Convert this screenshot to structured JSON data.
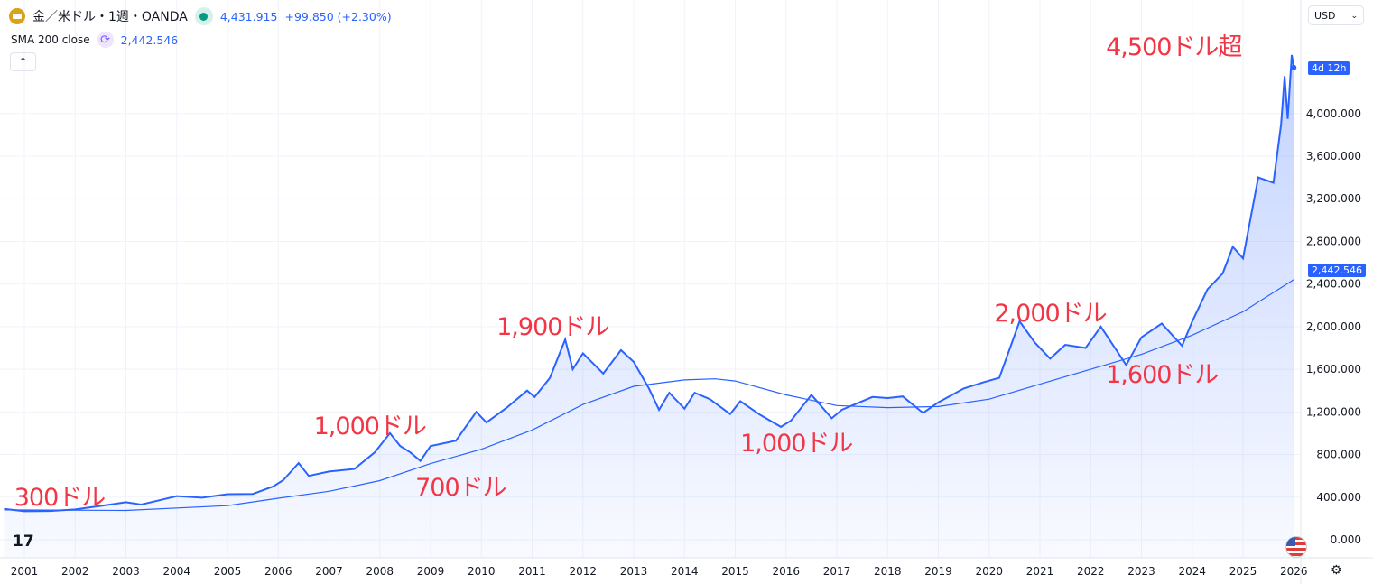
{
  "header": {
    "symbol": "金／米ドル・1週・OANDA",
    "price": "4,431.915",
    "change": "+99.850 (+2.30%)",
    "sma_label": "SMA 200 close",
    "sma_value": "2,442.546",
    "collapse": "^",
    "currency": "USD",
    "countdown": "4d 12h",
    "logo": "TV",
    "settings_icon": "gear-icon"
  },
  "annotations": [
    {
      "text": "300ドル",
      "t": 2000.8,
      "p": 330
    },
    {
      "text": "1,000ドル",
      "t": 2006.7,
      "p": 1000
    },
    {
      "text": "700ドル",
      "t": 2008.7,
      "p": 420
    },
    {
      "text": "1,900ドル",
      "t": 2010.3,
      "p": 1930
    },
    {
      "text": "1,000ドル",
      "t": 2015.1,
      "p": 840
    },
    {
      "text": "2,000ドル",
      "t": 2020.1,
      "p": 2060
    },
    {
      "text": "1,600ドル",
      "t": 2022.3,
      "p": 1480
    },
    {
      "text": "4,500ドル超",
      "t": 2022.3,
      "p": 4560
    }
  ],
  "colors": {
    "price": "#2962ff",
    "sma": "#2962ff",
    "annotation": "#f23645"
  },
  "chart_data": {
    "type": "area",
    "xlim": [
      2000.6,
      2026.05
    ],
    "ylim": [
      -100,
      4850
    ],
    "grid": true,
    "x_ticks": [
      "2001",
      "2002",
      "2003",
      "2004",
      "2005",
      "2006",
      "2007",
      "2008",
      "2009",
      "2010",
      "2011",
      "2012",
      "2013",
      "2014",
      "2015",
      "2016",
      "2017",
      "2018",
      "2019",
      "2020",
      "2021",
      "2022",
      "2023",
      "2024",
      "2025",
      "2026"
    ],
    "y_ticks": [
      0,
      400,
      800,
      1200,
      1600,
      2000,
      2400,
      2800,
      3200,
      3600,
      4000
    ],
    "y_tick_labels": [
      "0.000",
      "400.000",
      "800.000",
      "1,200.000",
      "1,600.000",
      "2,000.000",
      "2,400.000",
      "2,800.000",
      "3,200.000",
      "3,600.000",
      "4,000.000"
    ],
    "last_price": 4431.915,
    "sma_last": "2,442.546",
    "series": [
      {
        "name": "金／米ドル",
        "points": [
          [
            2000.6,
            290
          ],
          [
            2001,
            268
          ],
          [
            2001.5,
            270
          ],
          [
            2002,
            285
          ],
          [
            2002.5,
            318
          ],
          [
            2003,
            352
          ],
          [
            2003.3,
            330
          ],
          [
            2003.7,
            375
          ],
          [
            2004,
            410
          ],
          [
            2004.5,
            395
          ],
          [
            2005,
            428
          ],
          [
            2005.5,
            430
          ],
          [
            2005.9,
            500
          ],
          [
            2006.1,
            560
          ],
          [
            2006.4,
            720
          ],
          [
            2006.6,
            600
          ],
          [
            2007,
            640
          ],
          [
            2007.5,
            665
          ],
          [
            2007.9,
            820
          ],
          [
            2008.2,
            1000
          ],
          [
            2008.4,
            880
          ],
          [
            2008.6,
            820
          ],
          [
            2008.8,
            740
          ],
          [
            2009,
            880
          ],
          [
            2009.5,
            930
          ],
          [
            2009.9,
            1200
          ],
          [
            2010.1,
            1100
          ],
          [
            2010.5,
            1240
          ],
          [
            2010.9,
            1400
          ],
          [
            2011.05,
            1340
          ],
          [
            2011.35,
            1520
          ],
          [
            2011.65,
            1880
          ],
          [
            2011.8,
            1600
          ],
          [
            2012,
            1750
          ],
          [
            2012.4,
            1560
          ],
          [
            2012.75,
            1780
          ],
          [
            2013,
            1670
          ],
          [
            2013.3,
            1420
          ],
          [
            2013.5,
            1220
          ],
          [
            2013.7,
            1380
          ],
          [
            2014,
            1230
          ],
          [
            2014.2,
            1380
          ],
          [
            2014.5,
            1320
          ],
          [
            2014.9,
            1180
          ],
          [
            2015.1,
            1300
          ],
          [
            2015.5,
            1170
          ],
          [
            2015.9,
            1060
          ],
          [
            2016.1,
            1120
          ],
          [
            2016.5,
            1360
          ],
          [
            2016.9,
            1140
          ],
          [
            2017.1,
            1220
          ],
          [
            2017.7,
            1340
          ],
          [
            2018,
            1330
          ],
          [
            2018.3,
            1345
          ],
          [
            2018.7,
            1190
          ],
          [
            2019,
            1290
          ],
          [
            2019.5,
            1420
          ],
          [
            2019.9,
            1480
          ],
          [
            2020.2,
            1520
          ],
          [
            2020.6,
            2050
          ],
          [
            2020.9,
            1850
          ],
          [
            2021.2,
            1700
          ],
          [
            2021.5,
            1830
          ],
          [
            2021.9,
            1800
          ],
          [
            2022.2,
            2000
          ],
          [
            2022.7,
            1640
          ],
          [
            2023,
            1900
          ],
          [
            2023.4,
            2030
          ],
          [
            2023.8,
            1820
          ],
          [
            2024,
            2050
          ],
          [
            2024.3,
            2350
          ],
          [
            2024.6,
            2500
          ],
          [
            2024.8,
            2750
          ],
          [
            2025,
            2640
          ],
          [
            2025.3,
            3400
          ],
          [
            2025.6,
            3350
          ],
          [
            2025.75,
            3900
          ],
          [
            2025.82,
            4350
          ],
          [
            2025.88,
            3950
          ],
          [
            2025.96,
            4550
          ],
          [
            2026,
            4431.915
          ]
        ]
      },
      {
        "name": "SMA 200 close",
        "points": [
          [
            2000.6,
            280
          ],
          [
            2003,
            275
          ],
          [
            2005,
            320
          ],
          [
            2006,
            390
          ],
          [
            2007,
            455
          ],
          [
            2008,
            555
          ],
          [
            2009,
            715
          ],
          [
            2010,
            850
          ],
          [
            2011,
            1030
          ],
          [
            2012,
            1270
          ],
          [
            2013,
            1440
          ],
          [
            2014,
            1500
          ],
          [
            2014.6,
            1510
          ],
          [
            2015,
            1490
          ],
          [
            2016,
            1360
          ],
          [
            2017,
            1260
          ],
          [
            2018,
            1240
          ],
          [
            2019,
            1250
          ],
          [
            2020,
            1320
          ],
          [
            2021,
            1460
          ],
          [
            2022,
            1600
          ],
          [
            2023,
            1740
          ],
          [
            2024,
            1920
          ],
          [
            2025,
            2140
          ],
          [
            2026,
            2442.546
          ]
        ]
      }
    ]
  }
}
